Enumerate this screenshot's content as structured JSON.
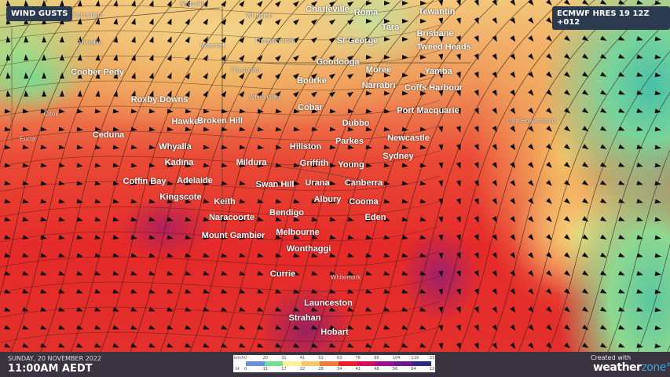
{
  "title": "WIND GUSTS",
  "model": "ECMWF HRES 19 12Z +012",
  "date": "SUNDAY, 20 NOVEMBER 2022",
  "time": "11:00AM AEDT",
  "credit": {
    "prefix": "Created with",
    "brand_a": "weather",
    "brand_b": "zone",
    "mark": "°"
  },
  "legend": {
    "kmh_unit": "km/h",
    "kt_unit": "kt",
    "kmh": [
      "0",
      "20",
      "31",
      "41",
      "52",
      "63",
      "76",
      "89",
      "104",
      "119",
      "237"
    ],
    "kt": [
      "0",
      "11",
      "17",
      "22",
      "28",
      "34",
      "41",
      "48",
      "56",
      "64",
      "128"
    ],
    "colors": [
      "#6a8fe0",
      "#6fe08f",
      "#fdf29a",
      "#f6c56a",
      "#f0793e",
      "#e8202a",
      "#d0105a",
      "#9a1090",
      "#6a1890",
      "#2a2a80"
    ]
  },
  "cities": [
    "Charleville",
    "Roma",
    "Tewantin",
    "Tara",
    "Brisbane",
    "St George",
    "Tweed Heads",
    "Goodooga",
    "Moree",
    "Yamba",
    "Coober Pedy",
    "Bourke",
    "Narrabri",
    "Coffs Harbour",
    "Roxby Downs",
    "Cobar",
    "Port Macquarie",
    "Hawker",
    "Broken Hill",
    "Dubbo",
    "Ceduna",
    "Newcastle",
    "Parkes",
    "Whyalla",
    "Hillston",
    "Sydney",
    "Kadina",
    "Mildura",
    "Griffith",
    "Young",
    "Coffin Bay",
    "Adelaide",
    "Swan Hill",
    "Urana",
    "Canberra",
    "Kingscote",
    "Keith",
    "Albury",
    "Cooma",
    "Bendigo",
    "Naracoorte",
    "Eden",
    "Mount Gambier",
    "Melbourne",
    "Wonthaggi",
    "Currie",
    "Launceston",
    "Strahan",
    "Hobart"
  ],
  "minor_places": [
    "Birdsville",
    "Oodnadatta",
    "Windorah",
    "Mintabie",
    "Moomba",
    "Thargomindah",
    "Tibooburra",
    "White Cliffs",
    "Cook",
    "Eucla",
    "Lord Howe Island",
    "Whitemark"
  ]
}
